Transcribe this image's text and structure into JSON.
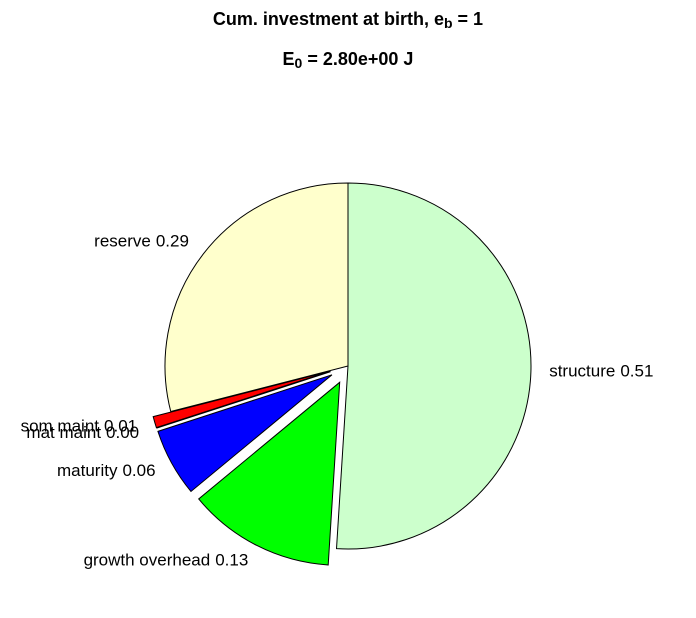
{
  "chart_data": {
    "type": "pie",
    "title": [
      "Cum. investment at birth, e",
      "b",
      " = 1"
    ],
    "subtitle": [
      "E",
      "0",
      " = 2.80e+00 J"
    ],
    "categories": [
      "structure",
      "growth overhead",
      "maturity",
      "mat maint",
      "som maint",
      "reserve"
    ],
    "values": [
      0.51,
      0.13,
      0.06,
      0,
      0.01,
      0.29
    ],
    "value_labels": [
      "0.51",
      "0.13",
      "0.06",
      "0.00",
      "0.01",
      "0.29"
    ],
    "colors": [
      "#ccffcc",
      "#00ff00",
      "#0000ff",
      "#ff00ff",
      "#ff0000",
      "#ffffcc"
    ],
    "explode": [
      false,
      true,
      true,
      true,
      true,
      false
    ]
  }
}
